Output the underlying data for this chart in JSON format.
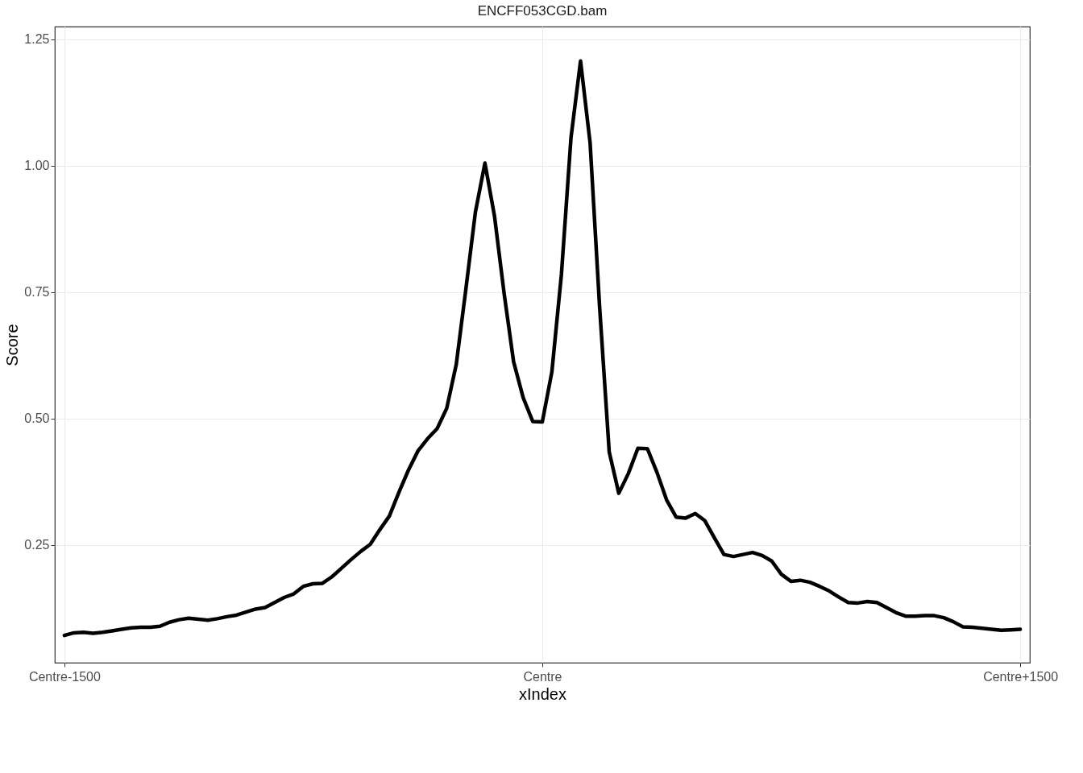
{
  "chart_data": {
    "type": "line",
    "title": "ENCFF053CGD.bam",
    "xlabel": "xIndex",
    "ylabel": "Score",
    "ylim": [
      0.017,
      1.275
    ],
    "yticks": [
      0.25,
      {
        "value": 0.5,
        "label": "0.50"
      },
      0.75,
      {
        "value": 1.0,
        "label": "1.00"
      },
      1.25
    ],
    "grid": true,
    "categories": [
      "Centre-1500",
      null,
      null,
      null,
      null,
      null,
      null,
      null,
      null,
      null,
      null,
      null,
      null,
      null,
      null,
      null,
      null,
      null,
      null,
      null,
      null,
      null,
      null,
      null,
      null,
      null,
      null,
      null,
      null,
      null,
      null,
      null,
      null,
      null,
      null,
      null,
      null,
      null,
      null,
      null,
      null,
      null,
      null,
      null,
      null,
      null,
      null,
      null,
      null,
      null,
      "Centre",
      null,
      null,
      null,
      null,
      null,
      null,
      null,
      null,
      null,
      null,
      null,
      null,
      null,
      null,
      null,
      null,
      null,
      null,
      null,
      null,
      null,
      null,
      null,
      null,
      null,
      null,
      null,
      null,
      null,
      null,
      null,
      null,
      null,
      null,
      null,
      null,
      null,
      null,
      null,
      null,
      null,
      null,
      null,
      null,
      null,
      null,
      null,
      null,
      null,
      "Centre+1500"
    ],
    "series": [
      {
        "color": "#000000",
        "values": [
          0.071,
          0.076,
          0.077,
          0.075,
          0.077,
          0.08,
          0.083,
          0.086,
          0.087,
          0.087,
          0.089,
          0.097,
          0.102,
          0.105,
          0.103,
          0.101,
          0.104,
          0.108,
          0.111,
          0.117,
          0.123,
          0.126,
          0.136,
          0.146,
          0.153,
          0.168,
          0.173,
          0.174,
          0.187,
          0.204,
          0.221,
          0.237,
          0.251,
          0.28,
          0.307,
          0.354,
          0.398,
          0.436,
          0.46,
          0.48,
          0.52,
          0.607,
          0.755,
          0.908,
          1.005,
          0.9,
          0.748,
          0.612,
          0.541,
          0.494,
          0.493,
          0.592,
          0.785,
          1.055,
          1.207,
          1.045,
          0.719,
          0.434,
          0.352,
          0.391,
          0.441,
          0.44,
          0.393,
          0.339,
          0.305,
          0.303,
          0.312,
          0.298,
          0.264,
          0.231,
          0.227,
          0.231,
          0.235,
          0.229,
          0.218,
          0.192,
          0.178,
          0.18,
          0.176,
          0.168,
          0.159,
          0.147,
          0.136,
          0.135,
          0.138,
          0.136,
          0.126,
          0.116,
          0.109,
          0.109,
          0.11,
          0.11,
          0.106,
          0.098,
          0.088,
          0.087,
          0.085,
          0.083,
          0.081,
          0.082,
          0.083
        ]
      }
    ]
  }
}
